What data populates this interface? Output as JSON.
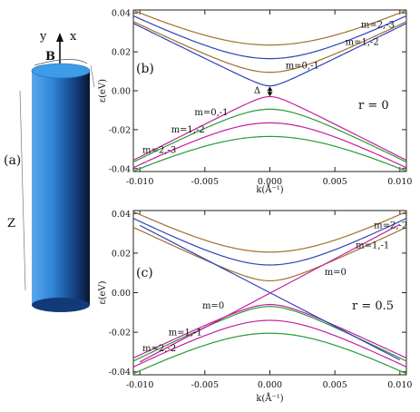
{
  "panel_a": {
    "label": "(a)",
    "axis_y": "y",
    "axis_x": "x",
    "field": "B",
    "axis_z": "Z",
    "colors": {
      "cyl_light": "#6fb6f0",
      "cyl_mid": "#2c7fd0",
      "cyl_dark": "#0d2a55",
      "top": "#3d9be8"
    }
  },
  "chart_data": [
    {
      "type": "line",
      "panel_label": "(b)",
      "param_text": "r = 0",
      "gap_label": "Δ",
      "xlabel": "k(Å⁻¹)",
      "ylabel": "ε(eV)",
      "xlim": [
        -0.0105,
        0.0105
      ],
      "ylim": [
        -0.0415,
        0.0415
      ],
      "xticks": [
        "-0.010",
        "-0.005",
        "0.000",
        "0.005",
        "0.010"
      ],
      "xtick_values": [
        -0.01,
        -0.005,
        0.0,
        0.005,
        0.01
      ],
      "yticks": [
        "0.04",
        "0.02",
        "0.00",
        "-0.02",
        "-0.04"
      ],
      "ytick_values": [
        0.04,
        0.02,
        0.0,
        -0.02,
        -0.04
      ],
      "series": [
        {
          "color": "#a0702e",
          "vertex": 0.0235,
          "edge": 0.04,
          "band": "upper"
        },
        {
          "color": "#2b44b5",
          "vertex": 0.0165,
          "edge": 0.037,
          "band": "upper"
        },
        {
          "color": "#a0702e",
          "vertex": 0.0095,
          "edge": 0.034,
          "band": "upper"
        },
        {
          "color": "#2b44b5",
          "vertex": 0.0025,
          "edge": 0.033,
          "band": "upper"
        },
        {
          "color": "#c2209e",
          "vertex": -0.003,
          "edge": -0.034,
          "band": "lower"
        },
        {
          "color": "#2a9a35",
          "vertex": -0.0095,
          "edge": -0.035,
          "band": "lower"
        },
        {
          "color": "#c2209e",
          "vertex": -0.0165,
          "edge": -0.038,
          "band": "lower"
        },
        {
          "color": "#2a9a35",
          "vertex": -0.0235,
          "edge": -0.04,
          "band": "lower"
        }
      ],
      "annotations": [
        {
          "text": "m=2,-3",
          "x": 0.007,
          "y": 0.0325
        },
        {
          "text": "m=1,-2",
          "x": 0.0058,
          "y": 0.0235
        },
        {
          "text": "m=0,-1",
          "x": 0.0012,
          "y": 0.0115
        },
        {
          "text": "m=0,-1",
          "x": -0.0058,
          "y": -0.0125
        },
        {
          "text": "m=1,-2",
          "x": -0.0076,
          "y": -0.0215
        },
        {
          "text": "m=2,-3",
          "x": -0.0098,
          "y": -0.032
        }
      ]
    },
    {
      "type": "line",
      "panel_label": "(c)",
      "param_text": "r = 0.5",
      "xlabel": "k(Å⁻¹)",
      "ylabel": "ε(eV)",
      "xlim": [
        -0.0105,
        0.0105
      ],
      "ylim": [
        -0.0415,
        0.0415
      ],
      "xticks": [
        "-0.010",
        "-0.005",
        "0.000",
        "0.005",
        "0.010"
      ],
      "xtick_values": [
        -0.01,
        -0.005,
        0.0,
        0.005,
        0.01
      ],
      "yticks": [
        "0.04",
        "0.02",
        "0.00",
        "-0.02",
        "-0.04"
      ],
      "ytick_values": [
        0.04,
        0.02,
        0.0,
        -0.02,
        -0.04
      ],
      "series": [
        {
          "color": "#a0702e",
          "vertex": 0.0205,
          "edge": 0.0395,
          "band": "upper"
        },
        {
          "color": "#2b44b5",
          "vertex": 0.014,
          "edge": 0.036,
          "band": "upper"
        },
        {
          "color": "#a0702e",
          "vertex": 0.006,
          "edge": 0.0315,
          "band": "upper"
        },
        {
          "color": "#c2209e",
          "vertex": -0.006,
          "edge": -0.0315,
          "band": "lower"
        },
        {
          "color": "#2a9a35",
          "vertex": -0.007,
          "edge": -0.033,
          "band": "lower"
        },
        {
          "color": "#c2209e",
          "vertex": -0.014,
          "edge": -0.036,
          "band": "lower"
        },
        {
          "color": "#2a9a35",
          "vertex": -0.0205,
          "edge": -0.0395,
          "band": "lower"
        }
      ],
      "crossing": {
        "color": "#2b44b5",
        "x": [
          -0.01,
          0.01
        ],
        "y": [
          0.034,
          -0.034
        ]
      },
      "crossing2": {
        "color": "#c2209e",
        "x": [
          -0.01,
          0.01
        ],
        "y": [
          -0.035,
          0.0345
        ]
      },
      "annotations": [
        {
          "text": "m=2,-2",
          "x": 0.008,
          "y": 0.0325
        },
        {
          "text": "m=1,-1",
          "x": 0.0066,
          "y": 0.0225
        },
        {
          "text": "m=0",
          "x": 0.0042,
          "y": 0.009
        },
        {
          "text": "m=0",
          "x": -0.0052,
          "y": -0.008
        },
        {
          "text": "m=1,-1",
          "x": -0.0078,
          "y": -0.0215
        },
        {
          "text": "m=2,-2",
          "x": -0.0098,
          "y": -0.0295
        }
      ]
    }
  ]
}
